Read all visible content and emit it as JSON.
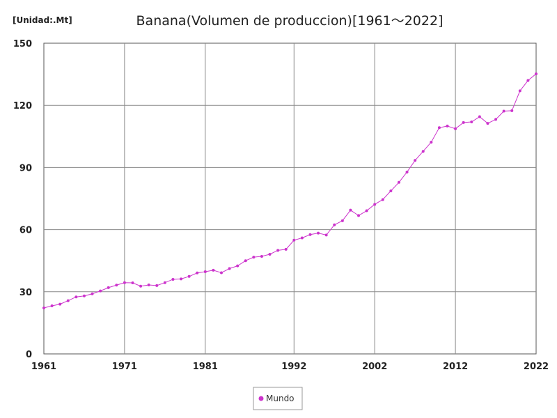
{
  "chart_data": {
    "type": "line",
    "title": "Banana(Volumen de produccion)[1961～2022]",
    "unit_label": "[Unidad:.Mt]",
    "xlabel": "",
    "ylabel": "",
    "xlim": [
      1961,
      2022
    ],
    "ylim": [
      0,
      150
    ],
    "x_ticks": [
      1961,
      1971,
      1981,
      1992,
      2002,
      2012,
      2022
    ],
    "y_ticks": [
      0,
      30,
      60,
      90,
      120,
      150
    ],
    "grid": true,
    "legend_position": "bottom-center",
    "series": [
      {
        "name": "Mundo",
        "color": "#cc33cc",
        "x": [
          1961,
          1962,
          1963,
          1964,
          1965,
          1966,
          1967,
          1968,
          1969,
          1970,
          1971,
          1972,
          1973,
          1974,
          1975,
          1976,
          1977,
          1978,
          1979,
          1980,
          1981,
          1982,
          1983,
          1984,
          1985,
          1986,
          1987,
          1988,
          1989,
          1990,
          1991,
          1992,
          1993,
          1994,
          1995,
          1996,
          1997,
          1998,
          1999,
          2000,
          2001,
          2002,
          2003,
          2004,
          2005,
          2006,
          2007,
          2008,
          2009,
          2010,
          2011,
          2012,
          2013,
          2014,
          2015,
          2016,
          2017,
          2018,
          2019,
          2020,
          2021,
          2022
        ],
        "values": [
          22.2,
          23.2,
          24.0,
          25.7,
          27.5,
          28.0,
          29.0,
          30.4,
          32.0,
          33.2,
          34.4,
          34.3,
          32.7,
          33.3,
          33.0,
          34.4,
          36.0,
          36.2,
          37.4,
          39.1,
          39.7,
          40.4,
          39.2,
          41.2,
          42.5,
          45.0,
          46.7,
          47.1,
          48.1,
          50.0,
          50.5,
          54.9,
          56.0,
          57.6,
          58.3,
          57.4,
          62.3,
          64.3,
          69.4,
          66.8,
          69.1,
          72.2,
          74.5,
          78.7,
          82.8,
          87.8,
          93.4,
          97.8,
          102.2,
          109.2,
          110.0,
          108.7,
          111.7,
          112.0,
          114.5,
          111.3,
          113.2,
          117.2,
          117.4,
          127.0,
          132.0,
          135.2
        ]
      }
    ]
  }
}
